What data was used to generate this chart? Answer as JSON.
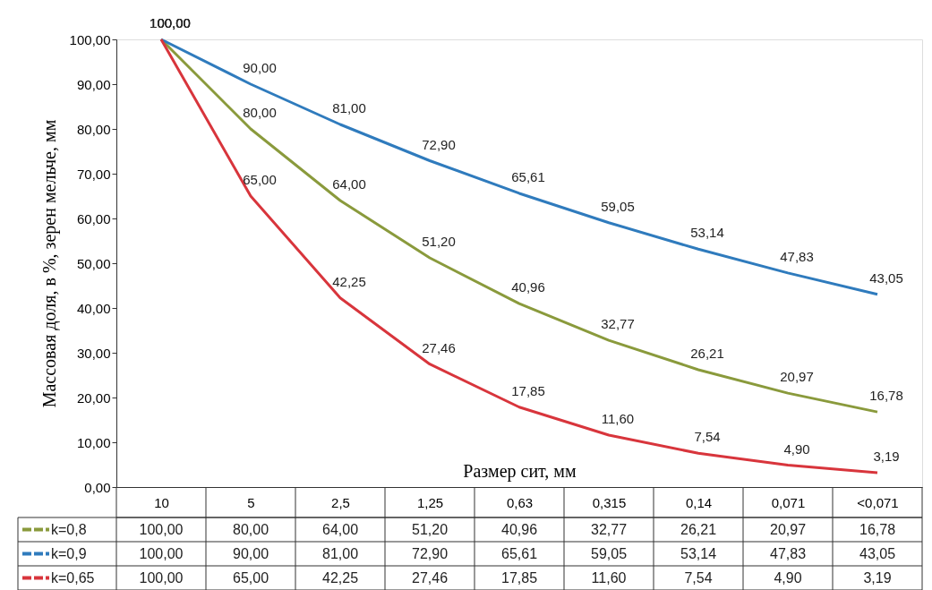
{
  "chart_data": {
    "type": "line",
    "xlabel": "Размер сит, мм",
    "ylabel": "Массовая доля, в %, зерен мельче, мм",
    "categories": [
      "10",
      "5",
      "2,5",
      "1,25",
      "0,63",
      "0,315",
      "0,14",
      "0,071",
      "<0,071"
    ],
    "series": [
      {
        "name": "k=0,8",
        "color": "#8a9a3c",
        "values": [
          100,
          80,
          64,
          51.2,
          40.96,
          32.77,
          26.21,
          20.97,
          16.78
        ],
        "value_labels": [
          "100,00",
          "80,00",
          "64,00",
          "51,20",
          "40,96",
          "32,77",
          "26,21",
          "20,97",
          "16,78"
        ]
      },
      {
        "name": "k=0,9",
        "color": "#2f7bbd",
        "values": [
          100,
          90,
          81,
          72.9,
          65.61,
          59.05,
          53.14,
          47.83,
          43.05
        ],
        "value_labels": [
          "100,00",
          "90,00",
          "81,00",
          "72,90",
          "65,61",
          "59,05",
          "53,14",
          "47,83",
          "43,05"
        ]
      },
      {
        "name": "k=0,65",
        "color": "#d8353c",
        "values": [
          100,
          65,
          42.25,
          27.46,
          17.85,
          11.6,
          7.54,
          4.9,
          3.19
        ],
        "value_labels": [
          "100,00",
          "65,00",
          "42,25",
          "27,46",
          "17,85",
          "11,60",
          "7,54",
          "4,90",
          "3,19"
        ]
      }
    ],
    "ylim": [
      0,
      100
    ],
    "yticks": [
      {
        "value": 0,
        "label": "0,00"
      },
      {
        "value": 10,
        "label": "10,00"
      },
      {
        "value": 20,
        "label": "20,00"
      },
      {
        "value": 30,
        "label": "30,00"
      },
      {
        "value": 40,
        "label": "40,00"
      },
      {
        "value": 50,
        "label": "50,00"
      },
      {
        "value": 60,
        "label": "60,00"
      },
      {
        "value": 70,
        "label": "70,00"
      },
      {
        "value": 80,
        "label": "80,00"
      },
      {
        "value": 90,
        "label": "90,00"
      },
      {
        "value": 100,
        "label": "100,00"
      }
    ],
    "grid": false,
    "legend": "bottom",
    "line_style": "solid"
  }
}
